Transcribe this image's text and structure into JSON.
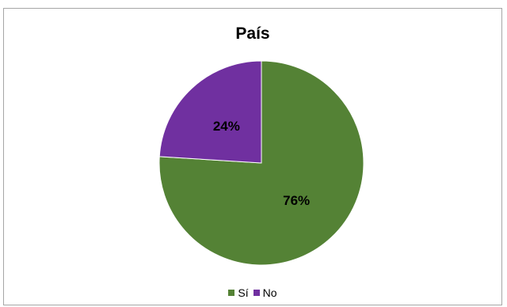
{
  "chart_data": {
    "type": "pie",
    "title": "País",
    "categories": [
      "Sí",
      "No"
    ],
    "values": [
      76,
      24
    ],
    "data_labels": [
      "76%",
      "24%"
    ],
    "colors": [
      "#548235",
      "#7030a0"
    ],
    "legend": {
      "placement": "bottom"
    },
    "start_angle_deg": 0,
    "direction": "clockwise"
  }
}
